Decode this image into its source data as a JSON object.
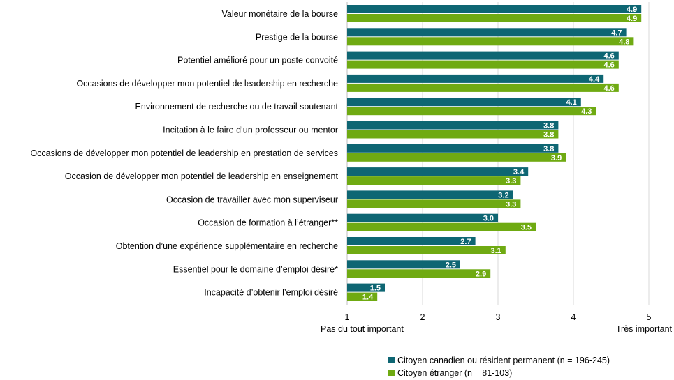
{
  "chart_data": {
    "type": "bar",
    "orientation": "horizontal",
    "categories": [
      "Valeur monétaire de la bourse",
      "Prestige de la bourse",
      "Potentiel amélioré pour un poste convoité",
      "Occasions de développer mon potentiel de leadership en recherche",
      "Environnement de recherche ou de travail soutenant",
      "Incitation à le faire d’un professeur ou mentor",
      "Occasions de développer mon potentiel de leadership en prestation de services",
      "Occasion de développer mon potentiel de leadership en enseignement",
      "Occasion de travailler avec mon superviseur",
      "Occasion de formation à l’étranger**",
      "Obtention d’une expérience supplémentaire en recherche",
      "Essentiel pour le domaine d’emploi désiré*",
      "Incapacité d’obtenir l’emploi désiré"
    ],
    "series": [
      {
        "name": "Citoyen canadien ou résident permanent (n = 196-245)",
        "color": "#0E6673",
        "values": [
          4.9,
          4.7,
          4.6,
          4.4,
          4.1,
          3.8,
          3.8,
          3.4,
          3.2,
          3.0,
          2.7,
          2.5,
          1.5
        ],
        "labels": [
          "4.9",
          "4.7",
          "4.6",
          "4.4",
          "4.1",
          "3.8",
          "3.8",
          "3.4",
          "3.2",
          "3.0",
          "2.7",
          "2.5",
          "1.5"
        ]
      },
      {
        "name": "Citoyen étranger (n = 81-103)",
        "color": "#6FAA12",
        "values": [
          4.9,
          4.8,
          4.6,
          4.6,
          4.3,
          3.8,
          3.9,
          3.3,
          3.3,
          3.5,
          3.1,
          2.9,
          1.4
        ],
        "labels": [
          "4.9",
          "4.8",
          "4.6",
          "4.6",
          "4.3",
          "3.8",
          "3.9",
          "3.3",
          "3.3",
          "3.5",
          "3.1",
          "2.9",
          "1.4"
        ]
      }
    ],
    "xlim": [
      1,
      5
    ],
    "xticks": [
      "1",
      "2",
      "3",
      "4",
      "5"
    ],
    "x_low_label": "Pas du tout important",
    "x_high_label": "Très important",
    "grid": "vertical",
    "legend_position": "bottom-right"
  }
}
